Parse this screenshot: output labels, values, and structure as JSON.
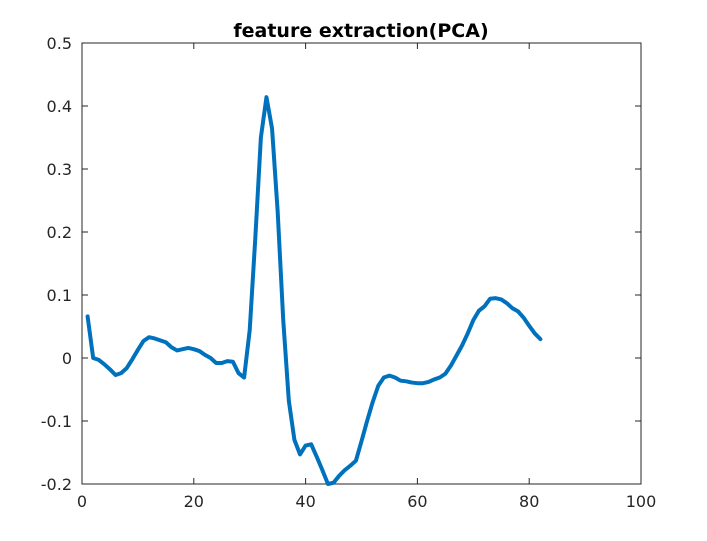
{
  "chart_data": {
    "type": "line",
    "title": "feature extraction(PCA)",
    "xlabel": "",
    "ylabel": "",
    "xlim": [
      0,
      100
    ],
    "ylim": [
      -0.2,
      0.5
    ],
    "xticks": [
      0,
      20,
      40,
      60,
      80,
      100
    ],
    "yticks": [
      -0.2,
      -0.1,
      0,
      0.1,
      0.2,
      0.3,
      0.4,
      0.5
    ],
    "grid": false,
    "series": [
      {
        "color": "#0072BD",
        "x": [
          1,
          2,
          3,
          4,
          5,
          6,
          7,
          8,
          9,
          10,
          11,
          12,
          13,
          14,
          15,
          16,
          17,
          18,
          19,
          20,
          21,
          22,
          23,
          24,
          25,
          26,
          27,
          28,
          29,
          30,
          31,
          32,
          33,
          34,
          35,
          36,
          37,
          38,
          39,
          40,
          41,
          42,
          43,
          44,
          45,
          46,
          47,
          48,
          49,
          50,
          51,
          52,
          53,
          54,
          55,
          56,
          57,
          58,
          59,
          60,
          61,
          62,
          63,
          64,
          65,
          66,
          67,
          68,
          69,
          70,
          71,
          72,
          73,
          74,
          75,
          76,
          77,
          78,
          79,
          80,
          81,
          82
        ],
        "y": [
          0.066,
          0.0,
          -0.003,
          -0.01,
          -0.018,
          -0.027,
          -0.024,
          -0.016,
          -0.002,
          0.013,
          0.027,
          0.033,
          0.031,
          0.028,
          0.025,
          0.017,
          0.012,
          0.014,
          0.016,
          0.014,
          0.011,
          0.005,
          0.0,
          -0.008,
          -0.008,
          -0.005,
          -0.006,
          -0.024,
          -0.031,
          0.044,
          0.19,
          0.35,
          0.414,
          0.364,
          0.233,
          0.06,
          -0.068,
          -0.13,
          -0.153,
          -0.139,
          -0.137,
          -0.157,
          -0.178,
          -0.2,
          -0.198,
          -0.187,
          -0.178,
          -0.171,
          -0.163,
          -0.132,
          -0.1,
          -0.07,
          -0.044,
          -0.031,
          -0.028,
          -0.031,
          -0.036,
          -0.037,
          -0.039,
          -0.04,
          -0.04,
          -0.038,
          -0.034,
          -0.031,
          -0.025,
          -0.012,
          0.004,
          0.02,
          0.039,
          0.06,
          0.075,
          0.082,
          0.094,
          0.095,
          0.093,
          0.087,
          0.079,
          0.074,
          0.064,
          0.051,
          0.039,
          0.03
        ]
      }
    ]
  }
}
